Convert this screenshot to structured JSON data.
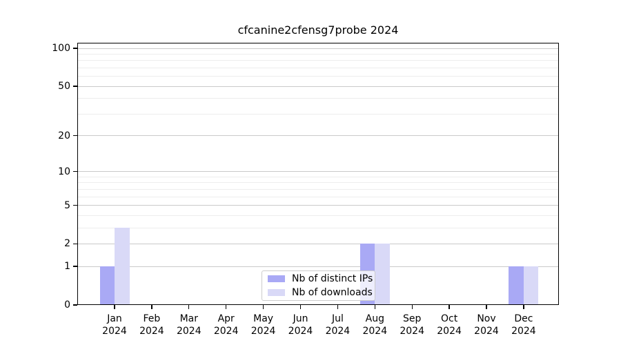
{
  "chart_data": {
    "type": "bar",
    "title": "cfcanine2cfensg7probe 2024",
    "x_year": "2024",
    "categories": [
      "Jan",
      "Feb",
      "Mar",
      "Apr",
      "May",
      "Jun",
      "Jul",
      "Aug",
      "Sep",
      "Oct",
      "Nov",
      "Dec"
    ],
    "series": [
      {
        "name": "Nb of distinct IPs",
        "color": "#a9a9f5",
        "values": [
          1,
          0,
          0,
          0,
          0,
          0,
          0,
          2,
          0,
          0,
          0,
          1
        ]
      },
      {
        "name": "Nb of downloads",
        "color": "#d9d9f7",
        "values": [
          3,
          0,
          0,
          0,
          0,
          0,
          0,
          2,
          0,
          0,
          0,
          1
        ]
      }
    ],
    "yscale": "log1p",
    "ylim": [
      0,
      100
    ],
    "yticks": [
      0,
      1,
      2,
      5,
      10,
      20,
      50,
      100
    ],
    "yticks_minor": [
      3,
      4,
      6,
      7,
      8,
      9,
      30,
      40,
      60,
      70,
      80,
      90
    ],
    "grid": true,
    "legend": {
      "position": "lower center"
    }
  },
  "colors": {
    "grid_major": "#c9c9c9",
    "grid_minor": "#ededed",
    "spine": "#000000",
    "legend_border": "#cccccc"
  }
}
